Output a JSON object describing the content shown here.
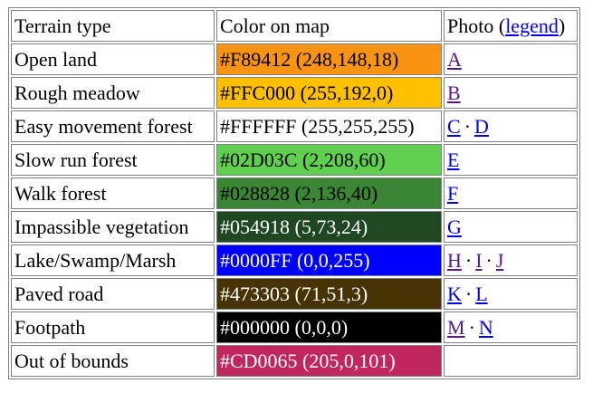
{
  "headers": {
    "terrain": "Terrain type",
    "color": "Color on map",
    "photo_prefix": "Photo (",
    "legend_link": "legend",
    "photo_suffix": ")"
  },
  "separator": "·",
  "rows": [
    {
      "terrain": "Open land",
      "color_text": "#F89412 (248,148,18)",
      "bg": "#F89412",
      "fg": "#000000",
      "links": [
        {
          "label": "A",
          "visited": true
        }
      ]
    },
    {
      "terrain": "Rough meadow",
      "color_text": "#FFC000 (255,192,0)",
      "bg": "#FFC000",
      "fg": "#000000",
      "links": [
        {
          "label": "B",
          "visited": true
        }
      ]
    },
    {
      "terrain": "Easy movement forest",
      "color_text": "#FFFFFF (255,255,255)",
      "bg": "#FFFFFF",
      "fg": "#000000",
      "links": [
        {
          "label": "C",
          "visited": false
        },
        {
          "label": "D",
          "visited": false
        }
      ]
    },
    {
      "terrain": "Slow run forest",
      "color_text": "#02D03C (2,208,60)",
      "bg": "#5ED04E",
      "fg": "#000000",
      "links": [
        {
          "label": "E",
          "visited": false
        }
      ]
    },
    {
      "terrain": "Walk forest",
      "color_text": "#028828 (2,136,40)",
      "bg": "#3B8634",
      "fg": "#000000",
      "links": [
        {
          "label": "F",
          "visited": false
        }
      ]
    },
    {
      "terrain": "Impassible vegetation",
      "color_text": "#054918 (5,73,24)",
      "bg": "#1F4822",
      "fg": "#ffffff",
      "links": [
        {
          "label": "G",
          "visited": false
        }
      ]
    },
    {
      "terrain": "Lake/Swamp/Marsh",
      "color_text": "#0000FF (0,0,255)",
      "bg": "#0000FF",
      "fg": "#ffffff",
      "links": [
        {
          "label": "H",
          "visited": true
        },
        {
          "label": "I",
          "visited": true
        },
        {
          "label": "J",
          "visited": true
        }
      ]
    },
    {
      "terrain": "Paved road",
      "color_text": "#473303 (71,51,3)",
      "bg": "#473303",
      "fg": "#ffffff",
      "links": [
        {
          "label": "K",
          "visited": false
        },
        {
          "label": "L",
          "visited": false
        }
      ]
    },
    {
      "terrain": "Footpath",
      "color_text": "#000000 (0,0,0)",
      "bg": "#000000",
      "fg": "#ffffff",
      "links": [
        {
          "label": "M",
          "visited": true
        },
        {
          "label": "N",
          "visited": false
        }
      ]
    },
    {
      "terrain": "Out of bounds",
      "color_text": "#CD0065 (205,0,101)",
      "bg": "#C2265E",
      "fg": "#ffffff",
      "links": []
    }
  ]
}
